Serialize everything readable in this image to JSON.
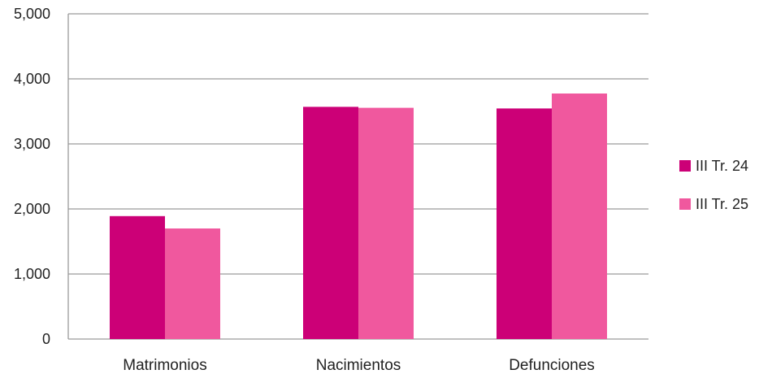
{
  "chart_data": {
    "type": "bar",
    "categories": [
      "Matrimonios",
      "Nacimientos",
      "Defunciones"
    ],
    "series": [
      {
        "name": "III Tr. 24",
        "color": "#cc0077",
        "values": [
          1890,
          3570,
          3545
        ]
      },
      {
        "name": "III Tr. 25",
        "color": "#f0589e",
        "values": [
          1700,
          3555,
          3775
        ]
      }
    ],
    "ylim": [
      0,
      5000
    ],
    "yticks": [
      0,
      1000,
      2000,
      3000,
      4000,
      5000
    ],
    "ytick_labels": [
      "0",
      "1,000",
      "2,000",
      "3,000",
      "4,000",
      "5,000"
    ],
    "grid": true,
    "legend_position": "right",
    "title": "",
    "xlabel": "",
    "ylabel": ""
  }
}
